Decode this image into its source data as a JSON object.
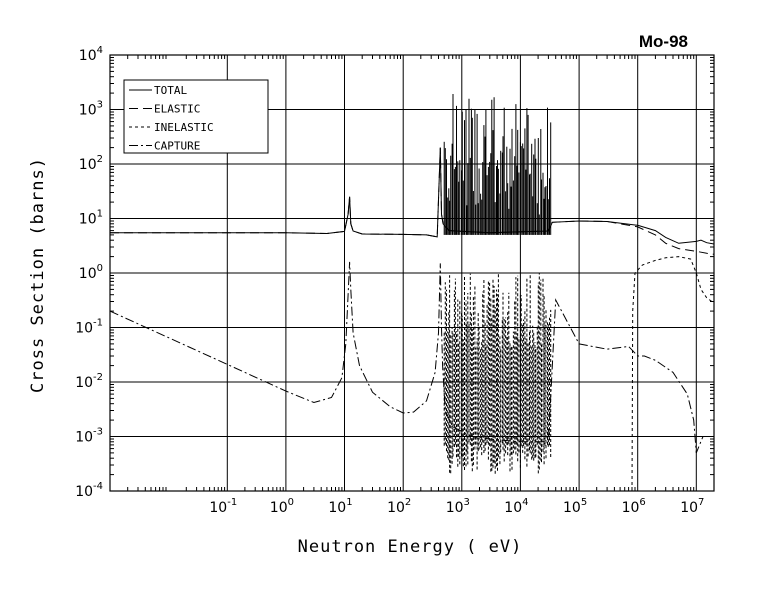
{
  "chart_data": {
    "type": "line",
    "title": "Mo-98",
    "xlabel": "Neutron Energy ( eV)",
    "ylabel": "Cross Section (barns)",
    "x_scale": "log",
    "y_scale": "log",
    "xlim": [
      0.001,
      20000000
    ],
    "ylim": [
      0.0001,
      10000
    ],
    "grid": true,
    "legend_position": "top-left",
    "x_ticks": [
      {
        "base": "10",
        "exp": "-1",
        "value": 0.1
      },
      {
        "base": "10",
        "exp": "0",
        "value": 1
      },
      {
        "base": "10",
        "exp": "1",
        "value": 10
      },
      {
        "base": "10",
        "exp": "2",
        "value": 100
      },
      {
        "base": "10",
        "exp": "3",
        "value": 1000
      },
      {
        "base": "10",
        "exp": "4",
        "value": 10000
      },
      {
        "base": "10",
        "exp": "5",
        "value": 100000
      },
      {
        "base": "10",
        "exp": "6",
        "value": 1000000
      },
      {
        "base": "10",
        "exp": "7",
        "value": 10000000
      }
    ],
    "y_ticks": [
      {
        "base": "10",
        "exp": "-4",
        "value": 0.0001
      },
      {
        "base": "10",
        "exp": "-3",
        "value": 0.001
      },
      {
        "base": "10",
        "exp": "-2",
        "value": 0.01
      },
      {
        "base": "10",
        "exp": "-1",
        "value": 0.1
      },
      {
        "base": "10",
        "exp": "0",
        "value": 1
      },
      {
        "base": "10",
        "exp": "1",
        "value": 10
      },
      {
        "base": "10",
        "exp": "2",
        "value": 100
      },
      {
        "base": "10",
        "exp": "3",
        "value": 1000
      },
      {
        "base": "10",
        "exp": "4",
        "value": 10000
      }
    ],
    "series": [
      {
        "name": "TOTAL",
        "dash": "solid",
        "points": [
          [
            0.001,
            5.5
          ],
          [
            1,
            5.5
          ],
          [
            5,
            5.3
          ],
          [
            10,
            5.8
          ],
          [
            11.5,
            12
          ],
          [
            12.2,
            25
          ],
          [
            12.8,
            8
          ],
          [
            14,
            5.9
          ],
          [
            20,
            5.2
          ],
          [
            100,
            5.1
          ],
          [
            250,
            5.0
          ],
          [
            380,
            4.6
          ],
          [
            430,
            200
          ],
          [
            450,
            12
          ],
          [
            480,
            8
          ],
          [
            600,
            6
          ],
          [
            3000,
            5.5
          ],
          [
            30000,
            5.9
          ],
          [
            35000,
            8.5
          ],
          [
            100000,
            9.0
          ],
          [
            300000,
            8.8
          ],
          [
            1000000,
            7.5
          ],
          [
            2000000,
            6.0
          ],
          [
            3000000,
            4.5
          ],
          [
            5000000,
            3.5
          ],
          [
            10000000,
            3.8
          ],
          [
            12000000,
            4.0
          ],
          [
            15000000,
            3.6
          ],
          [
            20000000,
            3.4
          ]
        ]
      },
      {
        "name": "ELASTIC",
        "dash": "longdash",
        "points": [
          [
            0.001,
            5.5
          ],
          [
            1,
            5.5
          ],
          [
            5,
            5.3
          ],
          [
            10,
            5.8
          ],
          [
            11.5,
            12
          ],
          [
            12.2,
            25
          ],
          [
            12.8,
            8
          ],
          [
            14,
            5.9
          ],
          [
            20,
            5.2
          ],
          [
            100,
            5.1
          ],
          [
            250,
            5.0
          ],
          [
            380,
            4.6
          ],
          [
            430,
            200
          ],
          [
            450,
            12
          ],
          [
            480,
            8
          ],
          [
            600,
            6
          ],
          [
            3000,
            5.5
          ],
          [
            30000,
            5.9
          ],
          [
            35000,
            8.5
          ],
          [
            100000,
            9.0
          ],
          [
            300000,
            8.8
          ],
          [
            1000000,
            7.0
          ],
          [
            2000000,
            5.0
          ],
          [
            3000000,
            3.5
          ],
          [
            5000000,
            2.8
          ],
          [
            10000000,
            2.5
          ],
          [
            15000000,
            2.3
          ],
          [
            20000000,
            2.2
          ]
        ]
      },
      {
        "name": "INELASTIC",
        "dash": "shortdash",
        "points": [
          [
            800000,
            0.0001
          ],
          [
            820000,
            0.2
          ],
          [
            900000,
            1.0
          ],
          [
            1200000,
            1.4
          ],
          [
            2000000,
            1.7
          ],
          [
            3000000,
            1.9
          ],
          [
            5000000,
            2.0
          ],
          [
            8000000,
            1.8
          ],
          [
            10000000,
            1.0
          ],
          [
            12000000,
            0.5
          ],
          [
            15000000,
            0.35
          ],
          [
            20000000,
            0.28
          ]
        ]
      },
      {
        "name": "CAPTURE",
        "dash": "dashdot",
        "points": [
          [
            0.001,
            0.2
          ],
          [
            0.01,
            0.065
          ],
          [
            0.1,
            0.021
          ],
          [
            1,
            0.0068
          ],
          [
            3,
            0.0042
          ],
          [
            6,
            0.0052
          ],
          [
            9,
            0.012
          ],
          [
            10.5,
            0.05
          ],
          [
            11.5,
            0.4
          ],
          [
            12.2,
            1.6
          ],
          [
            12.8,
            0.5
          ],
          [
            14,
            0.08
          ],
          [
            18,
            0.02
          ],
          [
            30,
            0.0065
          ],
          [
            60,
            0.0035
          ],
          [
            100,
            0.0027
          ],
          [
            150,
            0.0028
          ],
          [
            250,
            0.0045
          ],
          [
            350,
            0.015
          ],
          [
            400,
            0.08
          ],
          [
            430,
            1.5
          ],
          [
            450,
            0.1
          ],
          [
            470,
            0.02
          ],
          [
            520,
            0.003
          ],
          [
            700,
            0.0015
          ],
          [
            1500,
            0.001
          ],
          [
            3000,
            0.0009
          ],
          [
            10000,
            0.0008
          ],
          [
            30000,
            0.0008
          ],
          [
            40000,
            0.32
          ],
          [
            100000,
            0.05
          ],
          [
            300000,
            0.04
          ],
          [
            700000,
            0.045
          ],
          [
            1000000,
            0.03
          ],
          [
            1300000,
            0.03
          ],
          [
            2000000,
            0.025
          ],
          [
            4000000,
            0.015
          ],
          [
            7000000,
            0.006
          ],
          [
            9000000,
            0.002
          ],
          [
            10000000,
            0.0005
          ],
          [
            13000000,
            0.001
          ],
          [
            20000000,
            0.001
          ]
        ]
      }
    ]
  }
}
